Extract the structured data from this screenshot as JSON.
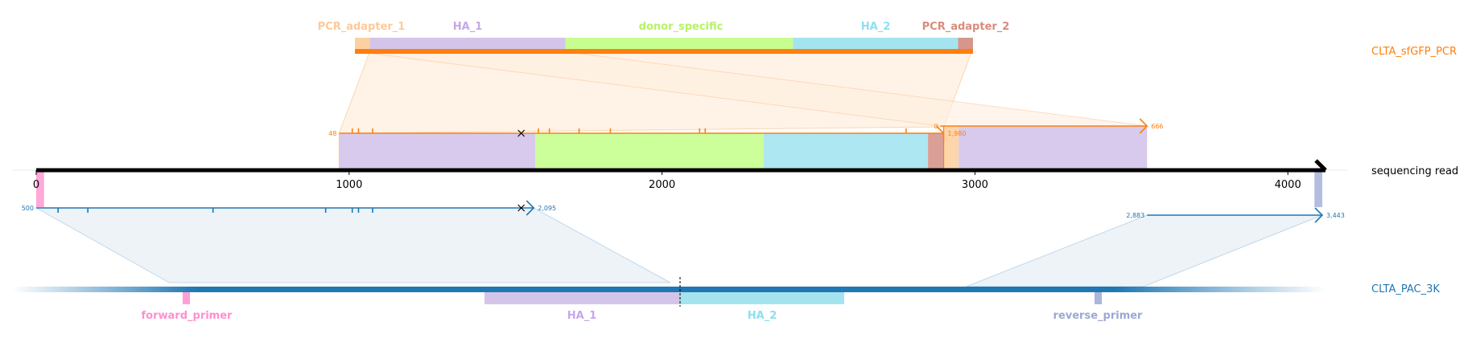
{
  "colors": {
    "read": "#000000",
    "orange": "#ff7f0e",
    "blue": "#1f77b4",
    "orange_fill": "#fff0e0",
    "blue_fill": "#e6eef5",
    "PCR_adapter": "#fdd0a2",
    "PCR_adapter_2": "#d6968c",
    "HA_1": "#d4c4ea",
    "donor_specific": "#c6ff8f",
    "HA_2": "#a4e4ef",
    "forward_primer": "#ff9fd6",
    "reverse_primer": "#aab6db",
    "label_PCR_adapter_1": "#fdc99a",
    "label_PCR_adapter_2": "#d88c7c",
    "label_HA_1": "#c7a6e8",
    "label_donor": "#b6f268",
    "label_HA_2": "#8ddff0",
    "label_forward_primer": "#ff8fcf",
    "label_reverse_primer": "#9aa8d4"
  },
  "read": {
    "label": "sequencing read",
    "length": 4150,
    "ticks": [
      {
        "value": 0,
        "label": "0"
      },
      {
        "value": 1000,
        "label": "1000"
      },
      {
        "value": 2000,
        "label": "2000"
      },
      {
        "value": 3000,
        "label": "3000"
      },
      {
        "value": 4000,
        "label": "4000"
      }
    ]
  },
  "top_ref": {
    "label": "CLTA_sfGFP_PCR",
    "features": [
      {
        "name": "PCR_adapter_1",
        "start": 0,
        "end": 48,
        "color": "PCR_adapter",
        "label_color": "label_PCR_adapter_1"
      },
      {
        "name": "HA_1",
        "start": 48,
        "end": 676,
        "color": "HA_1",
        "label_color": "label_HA_1"
      },
      {
        "name": "donor_specific",
        "start": 676,
        "end": 1406,
        "color": "donor_specific",
        "label_color": "label_donor"
      },
      {
        "name": "HA_2",
        "start": 1406,
        "end": 1936,
        "color": "HA_2",
        "label_color": "label_HA_2"
      },
      {
        "name": "PCR_adapter_2",
        "start": 1936,
        "end": 1984,
        "color": "PCR_adapter_2",
        "label_color": "label_PCR_adapter_2"
      }
    ]
  },
  "bottom_ref": {
    "label": "CLTA_PAC_3K",
    "cut_label": "",
    "features": [
      {
        "name": "forward_primer",
        "start": 500,
        "end": 520,
        "color": "forward_primer",
        "label_color": "label_forward_primer"
      },
      {
        "name": "HA_1",
        "start": 1470,
        "end": 2095,
        "color": "HA_1",
        "label_color": "label_HA_1"
      },
      {
        "name": "HA_2",
        "start": 2095,
        "end": 2620,
        "color": "HA_2",
        "label_color": "label_HA_2"
      },
      {
        "name": "reverse_primer",
        "start": 3435,
        "end": 3455,
        "color": "reverse_primer",
        "label_color": "label_reverse_primer"
      }
    ]
  },
  "alignments": {
    "top": [
      {
        "ref_start_label": "48",
        "ref_end_label": "1,980",
        "read_start": 968,
        "read_end": 2900,
        "marks": [
          1010,
          1030,
          1075,
          1605,
          1640,
          1735,
          1835,
          2120,
          2138,
          2780
        ],
        "x_mark": 1550
      },
      {
        "ref_start_label": "0",
        "ref_end_label": "666",
        "read_start": 2890,
        "read_end": 3550,
        "marks": [],
        "x_mark": null
      }
    ],
    "bottom": [
      {
        "ref_start_label": "500",
        "ref_end_label": "2,095",
        "read_start": 0,
        "read_end": 1590,
        "marks": [
          70,
          165,
          565,
          925,
          1010,
          1030,
          1075
        ],
        "x_mark": 1550
      },
      {
        "ref_start_label": "2,883",
        "ref_end_label": "3,443",
        "read_start": 3550,
        "read_end": 4110,
        "marks": [],
        "x_mark": null
      }
    ]
  },
  "read_features": [
    {
      "name": "forward_primer_on_read",
      "start": 0,
      "end": 25,
      "color": "forward_primer"
    },
    {
      "name": "HA_1_on_read",
      "start": 968,
      "end": 1595,
      "color": "HA_1"
    },
    {
      "name": "donor_specific_on_read",
      "start": 1595,
      "end": 2325,
      "color": "donor_specific"
    },
    {
      "name": "HA_2_on_read",
      "start": 2325,
      "end": 2850,
      "color": "HA_2"
    },
    {
      "name": "PCR_adapter_2_on_read",
      "start": 2850,
      "end": 2900,
      "color": "PCR_adapter_2"
    },
    {
      "name": "PCR_adapter_1_on_read",
      "start": 2900,
      "end": 2948,
      "color": "PCR_adapter"
    },
    {
      "name": "HA_1_second_on_read",
      "start": 2948,
      "end": 3550,
      "color": "HA_1"
    },
    {
      "name": "reverse_primer_on_read",
      "start": 4085,
      "end": 4110,
      "color": "reverse_primer"
    }
  ]
}
